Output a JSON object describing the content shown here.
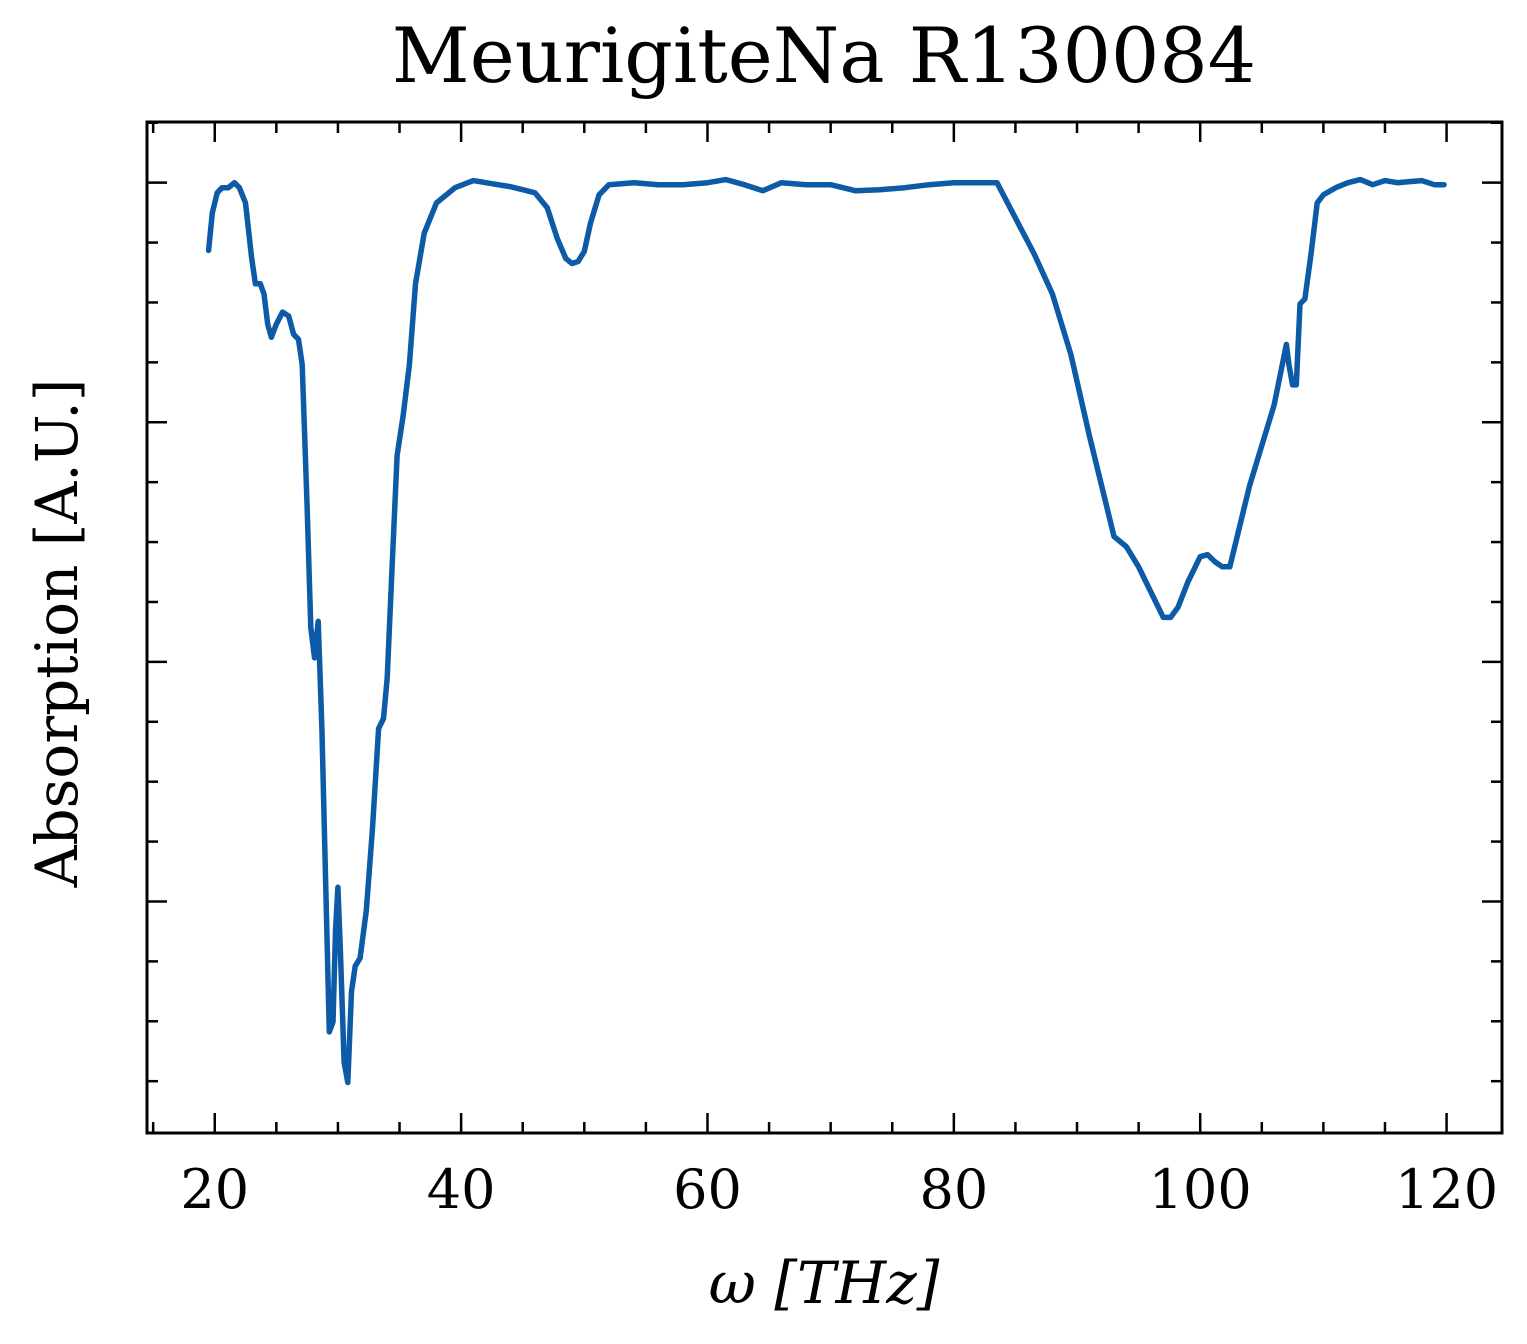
{
  "chart_data": {
    "type": "line",
    "title": "MeurigiteNa R130084",
    "xlabel": "ω [THz]",
    "ylabel": "Absorption [A.U.]",
    "xlim": [
      14.5,
      124.5
    ],
    "ylim": [
      0.0,
      1.0
    ],
    "x_ticks": [
      20,
      40,
      60,
      80,
      100,
      120
    ],
    "x_tick_labels": [
      "20",
      "40",
      "60",
      "80",
      "100",
      "120"
    ],
    "y_ticks_major": [
      0.229,
      0.466,
      0.703,
      0.94
    ],
    "y_show_tick_labels": false,
    "grid": false,
    "legend": "none",
    "colors": {
      "series": "#0d5ba6",
      "axes": "#000000",
      "background": "#ffffff"
    },
    "series": [
      {
        "values_note": "",
        "x": [
          19.5,
          19.8,
          20.2,
          20.6,
          21.1,
          21.6,
          22.0,
          22.5,
          23.0,
          23.3,
          23.7,
          24.0,
          24.3,
          24.6,
          25.0,
          25.5,
          26.0,
          26.4,
          26.8,
          27.1,
          27.5,
          27.8,
          28.1,
          28.4,
          28.7,
          29.0,
          29.3,
          29.6,
          29.8,
          30.0,
          30.2,
          30.5,
          30.8,
          31.1,
          31.4,
          31.8,
          32.3,
          32.8,
          33.3,
          33.7,
          34.0,
          34.4,
          34.8,
          35.3,
          35.8,
          36.3,
          37.0,
          38.0,
          39.5,
          41.0,
          42.5,
          44.0,
          45.0,
          46.0,
          47.0,
          47.8,
          48.5,
          49.0,
          49.5,
          50.0,
          50.5,
          51.2,
          52.0,
          54.0,
          56.0,
          58.0,
          60.0,
          61.5,
          63.0,
          64.5,
          66.0,
          68.0,
          70.0,
          72.0,
          74.0,
          76.0,
          78.0,
          80.0,
          82.0,
          83.5,
          85.0,
          86.5,
          88.0,
          89.5,
          91.0,
          92.0,
          93.0,
          94.0,
          95.0,
          96.0,
          97.0,
          97.6,
          98.2,
          99.0,
          100.0,
          100.6,
          101.2,
          101.8,
          102.4,
          103.0,
          104.0,
          105.0,
          106.0,
          107.0,
          107.2,
          107.5,
          107.8,
          108.1,
          108.5,
          109.0,
          109.5,
          110.0,
          111.0,
          112.0,
          113.0,
          114.0,
          115.0,
          116.0,
          117.0,
          118.0,
          119.0,
          119.8
        ],
        "y": [
          0.873,
          0.91,
          0.93,
          0.935,
          0.935,
          0.94,
          0.935,
          0.92,
          0.865,
          0.84,
          0.84,
          0.83,
          0.8,
          0.787,
          0.8,
          0.812,
          0.808,
          0.79,
          0.785,
          0.76,
          0.62,
          0.5,
          0.47,
          0.506,
          0.4,
          0.25,
          0.1,
          0.11,
          0.2,
          0.243,
          0.18,
          0.07,
          0.05,
          0.14,
          0.165,
          0.173,
          0.22,
          0.3,
          0.4,
          0.41,
          0.45,
          0.56,
          0.67,
          0.71,
          0.76,
          0.84,
          0.89,
          0.92,
          0.935,
          0.942,
          0.939,
          0.936,
          0.933,
          0.93,
          0.915,
          0.885,
          0.865,
          0.86,
          0.862,
          0.872,
          0.9,
          0.928,
          0.938,
          0.94,
          0.938,
          0.938,
          0.94,
          0.943,
          0.938,
          0.932,
          0.94,
          0.938,
          0.938,
          0.932,
          0.933,
          0.935,
          0.938,
          0.94,
          0.94,
          0.94,
          0.905,
          0.87,
          0.83,
          0.77,
          0.69,
          0.64,
          0.59,
          0.58,
          0.56,
          0.535,
          0.51,
          0.51,
          0.52,
          0.545,
          0.57,
          0.572,
          0.565,
          0.56,
          0.56,
          0.59,
          0.64,
          0.68,
          0.72,
          0.78,
          0.76,
          0.74,
          0.74,
          0.82,
          0.825,
          0.87,
          0.92,
          0.928,
          0.935,
          0.94,
          0.943,
          0.938,
          0.942,
          0.94,
          0.941,
          0.942,
          0.938,
          0.938
        ]
      }
    ]
  }
}
